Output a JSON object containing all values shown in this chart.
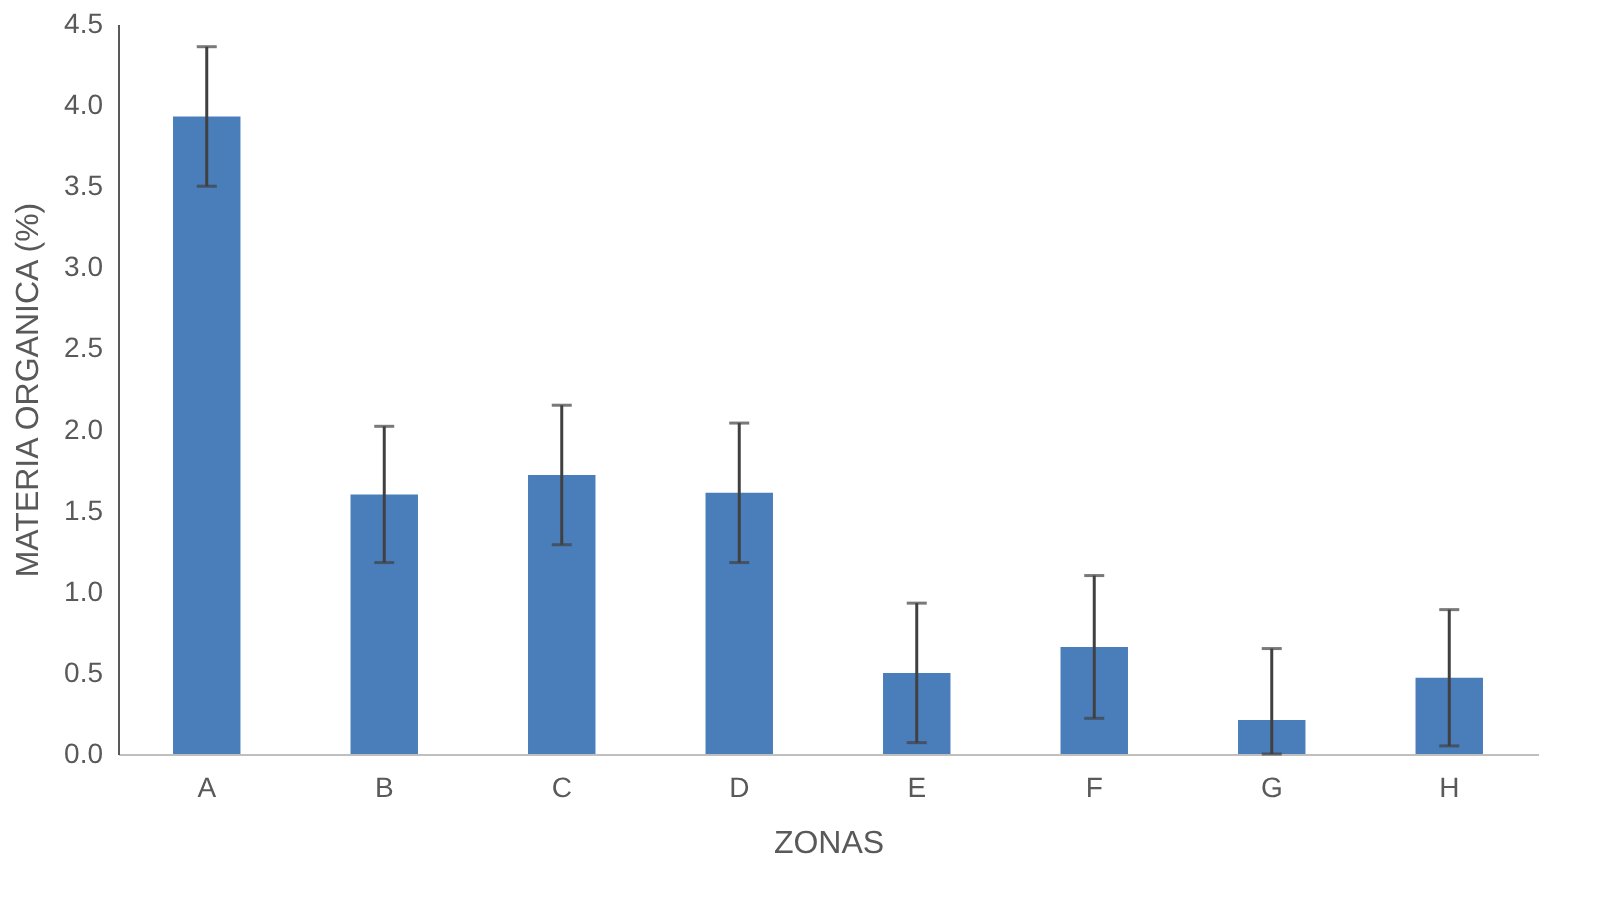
{
  "chart_data": {
    "type": "bar",
    "xlabel": "ZONAS",
    "ylabel": "MATERIA ORGANICA (%)",
    "categories": [
      "A",
      "B",
      "C",
      "D",
      "E",
      "F",
      "G",
      "H"
    ],
    "values": [
      3.93,
      1.6,
      1.72,
      1.61,
      0.5,
      0.66,
      0.21,
      0.47
    ],
    "errors": [
      0.43,
      0.42,
      0.43,
      0.43,
      0.43,
      0.44,
      [
        0,
        0.65
      ],
      0.42
    ],
    "color": "#4a7ebb",
    "ylim": [
      0,
      4.5
    ],
    "yticks": [
      {
        "value": 0,
        "label": "0.0"
      },
      0.5,
      {
        "value": 1,
        "label": "1.0"
      },
      1.5,
      {
        "value": 2,
        "label": "2.0"
      },
      2.5,
      {
        "value": 3,
        "label": "3.0"
      },
      3.5,
      {
        "value": 4,
        "label": "4.0"
      },
      4.5
    ],
    "grid": false
  }
}
